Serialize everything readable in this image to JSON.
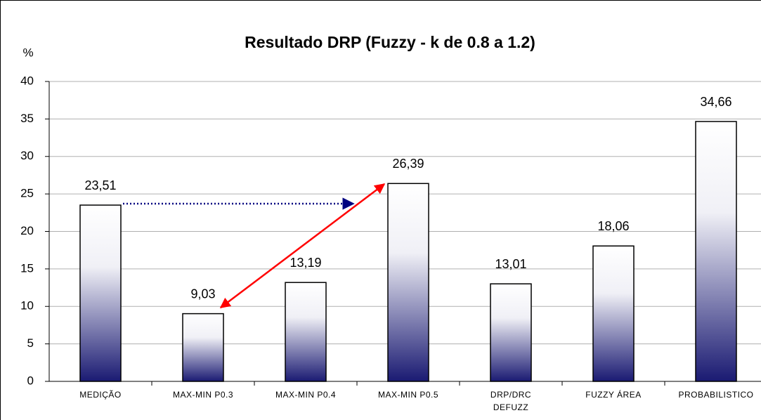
{
  "chart_data": {
    "type": "bar",
    "title": "Resultado DRP  (Fuzzy  - k de 0.8 a 1.2)",
    "y_label": "%",
    "categories": [
      "MEDIÇÃO",
      "MAX-MIN P0.3",
      "MAX-MIN P0.4",
      "MAX-MIN P0.5",
      "DRP/DRC DEFUZZ",
      "FUZZY ÁREA",
      "PROBABILISTICO"
    ],
    "values": [
      23.51,
      9.03,
      13.19,
      26.39,
      13.01,
      18.06,
      34.66
    ],
    "value_labels": [
      "23,51",
      "9,03",
      "13,19",
      "26,39",
      "13,01",
      "18,06",
      "34,66"
    ],
    "color": "#1a1a72",
    "ylim": [
      0,
      40
    ],
    "yticks": [
      0,
      5,
      10,
      15,
      20,
      25,
      30,
      35,
      40
    ],
    "grid": true
  }
}
